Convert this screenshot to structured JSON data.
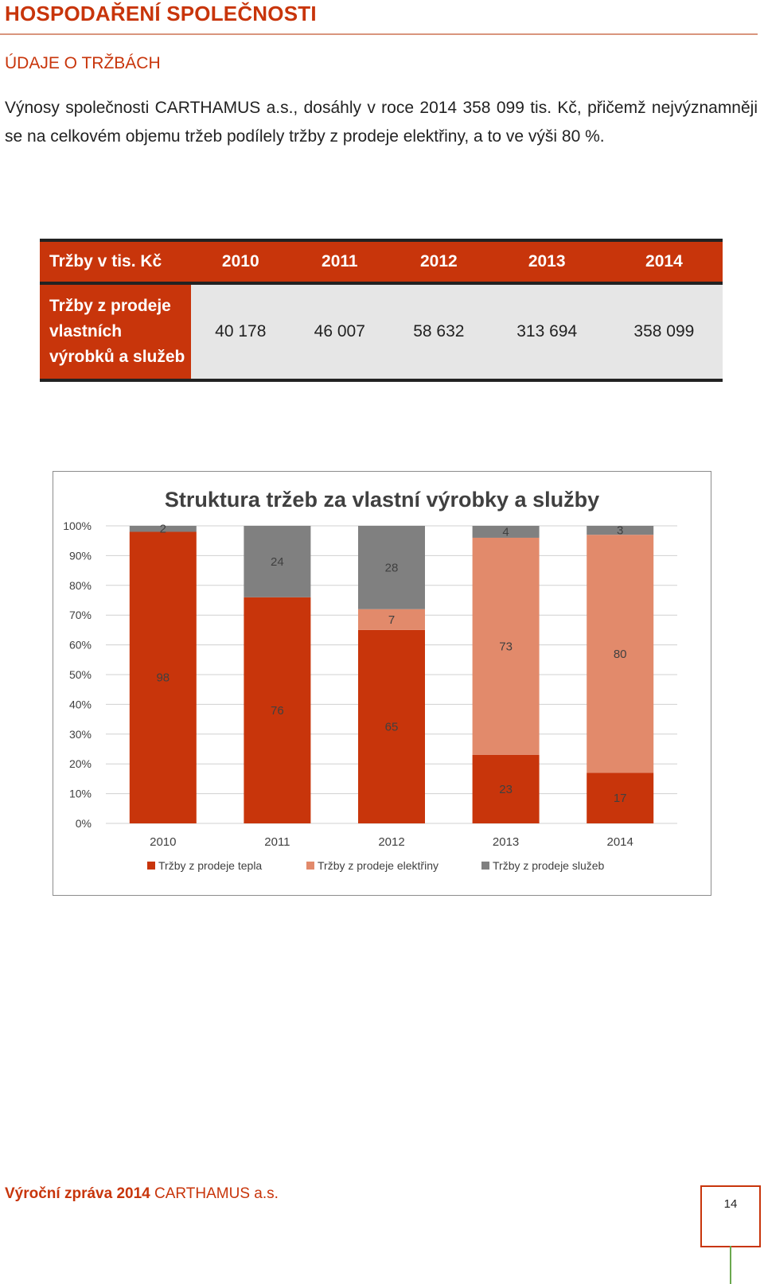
{
  "header": {
    "title": "HOSPODAŘENÍ SPOLEČNOSTI",
    "section": "ÚDAJE O TRŽBÁCH",
    "intro": "Výnosy společnosti CARTHAMUS a.s., dosáhly v roce 2014 358 099 tis. Kč, přičemž nejvýznamněji se na celkovém objemu tržeb podílely tržby z prodeje elektřiny, a to ve výši 80 %."
  },
  "table": {
    "headers": [
      "Tržby v tis. Kč",
      "2010",
      "2011",
      "2012",
      "2013",
      "2014"
    ],
    "row_label_lines": [
      "Tržby z prodeje",
      "vlastních",
      "výrobků a služeb"
    ],
    "values": [
      "40 178",
      "46 007",
      "58 632",
      "313 694",
      "358 099"
    ]
  },
  "chart_data": {
    "type": "bar",
    "stacked": "percent",
    "title": "Struktura tržeb za vlastní výrobky a služby",
    "categories": [
      "2010",
      "2011",
      "2012",
      "2013",
      "2014"
    ],
    "series": [
      {
        "name": "Tržby z prodeje tepla",
        "values": [
          98,
          76,
          65,
          23,
          17
        ],
        "color": "#c8350b"
      },
      {
        "name": "Tržby z prodeje elektřiny",
        "values": [
          0,
          0,
          7,
          73,
          80
        ],
        "color": "#e28a6b"
      },
      {
        "name": "Tržby z prodeje služeb",
        "values": [
          2,
          24,
          28,
          4,
          3
        ],
        "color": "#808080"
      }
    ],
    "y_ticks": [
      "0%",
      "10%",
      "20%",
      "30%",
      "40%",
      "50%",
      "60%",
      "70%",
      "80%",
      "90%",
      "100%"
    ],
    "ylim": [
      0,
      100
    ],
    "grid": true,
    "legend": "bottom"
  },
  "footer": {
    "report_label": "Výroční zpráva 2014",
    "company": "CARTHAMUS a.s.",
    "page_number": "14"
  }
}
